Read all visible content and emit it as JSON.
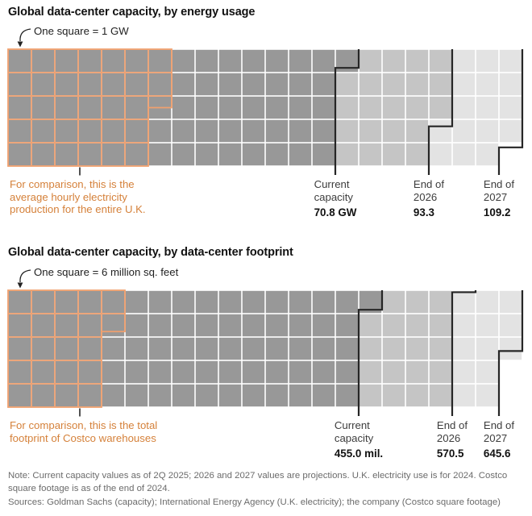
{
  "colors": {
    "current_fill": "#989898",
    "end_2026_fill": "#c5c5c5",
    "end_2027_fill": "#e3e3e3",
    "milestone_line": "#262626",
    "comparison_outline": "#f0a06e",
    "comparison_text": "#d5813a",
    "note_text": "#6b6b6b"
  },
  "chart_data": [
    {
      "type": "waffle",
      "title": "Global data-center capacity, by energy usage",
      "square_legend": "One square = 1 GW",
      "unit": "GW",
      "unit_per_square": 1,
      "rows": 5,
      "cols": 22,
      "milestones": [
        {
          "label": [
            "Current",
            "capacity"
          ],
          "value": 70.8,
          "value_label": "70.8 GW"
        },
        {
          "label": [
            "End of",
            "2026"
          ],
          "value": 93.3,
          "value_label": "93.3"
        },
        {
          "label": [
            "End of",
            "2027"
          ],
          "value": 109.2,
          "value_label": "109.2"
        }
      ],
      "comparison": {
        "name": "Average hourly electricity production for the entire U.K.",
        "value": 32.5,
        "caption": [
          "For comparison, this is the",
          "average hourly electricity",
          "production for the entire U.K."
        ]
      }
    },
    {
      "type": "waffle",
      "title": "Global data-center capacity, by data-center footprint",
      "square_legend": "One square = 6 million sq. feet",
      "unit": "million sq. feet",
      "unit_per_square": 6,
      "rows": 5,
      "cols": 22,
      "milestones": [
        {
          "label": [
            "Current",
            "capacity"
          ],
          "value": 455.0,
          "value_label": "455.0 mil."
        },
        {
          "label": [
            "End of",
            "2026"
          ],
          "value": 570.5,
          "value_label": "570.5"
        },
        {
          "label": [
            "End of",
            "2027"
          ],
          "value": 645.6,
          "value_label": "645.6"
        }
      ],
      "comparison": {
        "name": "Total footprint of Costco warehouses",
        "value": 130.6,
        "caption": [
          "For comparison, this is the total",
          "footprint of Costco warehouses"
        ]
      }
    }
  ],
  "note_lines": [
    "Note: Current capacity values as of 2Q 2025; 2026 and 2027 values are projections. U.K. electricity use is for 2024. Costco",
    "square footage is as of the end of 2024."
  ],
  "sources_line": "Sources: Goldman Sachs (capacity); International Energy Agency (U.K. electricity); the company (Costco square footage)"
}
